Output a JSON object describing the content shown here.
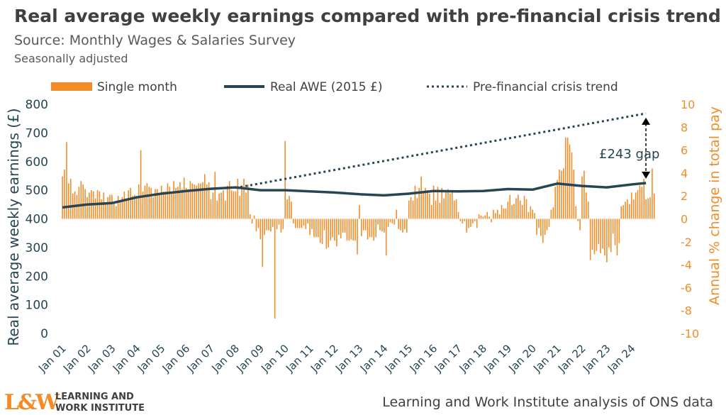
{
  "header": {
    "title": "Real average weekly earnings compared with pre-financial crisis trend",
    "subtitle": "Source: Monthly Wages & Salaries Survey",
    "note": "Seasonally adjusted"
  },
  "footer": {
    "logo_mark": "L&W",
    "logo_line1": "LEARNING AND",
    "logo_line2": "WORK INSTITUTE",
    "source_note": "Learning and Work Institute analysis of ONS data"
  },
  "colors": {
    "bar": "#F28C28",
    "line": "#264653",
    "left_axis": "#264653",
    "right_axis": "#F28C28",
    "annotation": "#264653"
  },
  "chart_data": {
    "type": "bar+line",
    "x_categories": [
      "Jan 01",
      "Jan 02",
      "Jan 03",
      "Jan 04",
      "Jan 05",
      "Jan 06",
      "Jan 07",
      "Jan 08",
      "Jan 09",
      "Jan 10",
      "Jan 11",
      "Jan 12",
      "Jan 13",
      "Jan 14",
      "Jan 15",
      "Jan 16",
      "Jan 17",
      "Jan 18",
      "Jan 19",
      "Jan 20",
      "Jan 21",
      "Jan 22",
      "Jan 23",
      "Jan 24"
    ],
    "y_left": {
      "label": "Real average weekly earnings (£)",
      "min": 0,
      "max": 800,
      "ticks": [
        0,
        100,
        200,
        300,
        400,
        500,
        600,
        700,
        800
      ]
    },
    "y_right": {
      "label": "Annual % change in total pay",
      "min": -10,
      "max": 10,
      "ticks": [
        -10,
        -8,
        -6,
        -4,
        -2,
        0,
        2,
        4,
        6,
        8,
        10
      ]
    },
    "legend": {
      "position": "top",
      "items": [
        {
          "label": "Single month",
          "kind": "bar"
        },
        {
          "label": "Real AWE (2015 £)",
          "kind": "line"
        },
        {
          "label": "Pre-financial crisis trend",
          "kind": "dotted"
        }
      ]
    },
    "series": [
      {
        "name": "Real AWE (2015 £)",
        "axis": "left",
        "type": "line",
        "points": [
          [
            "Jan 01",
            440
          ],
          [
            "Jan 02",
            450
          ],
          [
            "Jan 03",
            455
          ],
          [
            "Jan 04",
            475
          ],
          [
            "Jan 05",
            488
          ],
          [
            "Jan 06",
            497
          ],
          [
            "Jan 07",
            505
          ],
          [
            "Jan 08",
            510
          ],
          [
            "Jan 09",
            500
          ],
          [
            "Jan 10",
            500
          ],
          [
            "Jan 11",
            496
          ],
          [
            "Jan 12",
            492
          ],
          [
            "Jan 13",
            486
          ],
          [
            "Jan 14",
            482
          ],
          [
            "Jan 15",
            488
          ],
          [
            "Jan 16",
            497
          ],
          [
            "Jan 17",
            496
          ],
          [
            "Jan 18",
            497
          ],
          [
            "Jan 19",
            504
          ],
          [
            "Jan 20",
            502
          ],
          [
            "Jan 21",
            523
          ],
          [
            "Jan 22",
            515
          ],
          [
            "Jan 23",
            510
          ],
          [
            "Jan 24",
            520
          ],
          [
            "Aug 24",
            525
          ]
        ]
      },
      {
        "name": "Pre-financial crisis trend",
        "axis": "left",
        "type": "dotted-line",
        "points": [
          [
            "Jan 08",
            508
          ],
          [
            "Aug 24",
            768
          ]
        ]
      },
      {
        "name": "Single month",
        "axis": "right",
        "type": "bar",
        "values_by_year": [
          [
            3.7,
            4.3,
            6.7,
            3.1,
            3.5,
            2.2,
            2.4,
            2.1,
            2.8,
            3.3,
            3.0,
            2.6
          ],
          [
            1.9,
            2.3,
            2.5,
            2.4,
            1.8,
            2.5,
            2.4,
            1.7,
            2.3,
            1.3,
            1.9,
            2.1
          ],
          [
            2.1,
            1.4,
            1.1,
            2.0,
            1.5,
            1.9,
            2.4,
            1.8,
            2.5,
            2.7,
            2.0,
            2.1
          ],
          [
            2.0,
            3.0,
            6.0,
            2.4,
            2.9,
            3.1,
            2.8,
            2.7,
            1.9,
            2.6,
            2.6,
            2.1
          ],
          [
            2.9,
            2.4,
            2.4,
            3.1,
            2.8,
            2.3,
            3.3,
            2.7,
            2.8,
            3.2,
            2.6,
            3.6
          ],
          [
            2.7,
            2.6,
            3.3,
            3.1,
            3.0,
            2.9,
            3.1,
            3.1,
            3.2,
            3.9,
            3.0,
            3.2
          ],
          [
            1.7,
            2.3,
            4.1,
            1.6,
            2.2,
            2.3,
            2.5,
            1.6,
            2.9,
            3.3,
            2.5,
            2.4
          ],
          [
            2.4,
            3.5,
            2.0,
            2.8,
            3.5,
            2.3,
            3.0,
            0.4,
            -0.4,
            0.3,
            -1.1,
            -0.8
          ],
          [
            -1.8,
            -4.2,
            -1.4,
            -1.0,
            -1.0,
            -1.1,
            -0.7,
            -8.7,
            -0.9,
            -0.5,
            -1.2,
            -0.9
          ],
          [
            6.8,
            1.7,
            2.0,
            1.5,
            -0.4,
            -0.8,
            -0.8,
            -0.8,
            -0.8,
            -0.6,
            -0.9,
            -0.4
          ],
          [
            -1.4,
            -0.9,
            -1.6,
            -1.6,
            -1.6,
            -2.1,
            -2.2,
            -1.0,
            -2.6,
            -2.5,
            -1.9,
            -1.6
          ],
          [
            -1.9,
            -2.4,
            -1.4,
            -1.7,
            -1.2,
            -1.2,
            -1.9,
            -1.9,
            -1.8,
            -1.9,
            -1.9,
            -3.1
          ],
          [
            1.2,
            -1.5,
            -1.0,
            -1.0,
            -1.8,
            -1.6,
            -1.6,
            -1.9,
            -1.6,
            -0.5,
            -1.0,
            -1.1
          ],
          [
            -1.2,
            -3.2,
            -0.7,
            -0.3,
            -0.4,
            -0.5,
            0.8,
            -0.9,
            -1.0,
            -1.2,
            -0.9,
            -1.2
          ],
          [
            1.6,
            1.9,
            1.6,
            2.9,
            1.8,
            2.7,
            3.7,
            2.4,
            2.7,
            2.5,
            2.2,
            1.2
          ],
          [
            2.9,
            1.6,
            2.8,
            1.4,
            2.7,
            1.8,
            2.4,
            2.6,
            2.2,
            2.4,
            1.6,
            1.7
          ],
          [
            0.6,
            -0.2,
            -0.4,
            -0.2,
            -1.2,
            -0.8,
            -0.7,
            -0.4,
            -0.2,
            -0.8,
            0.4,
            0.3
          ],
          [
            0.2,
            0.3,
            0.6,
            0.2,
            -0.3,
            0.8,
            0.5,
            0.8,
            0.4,
            1.2,
            0.9,
            0.9
          ],
          [
            1.5,
            2.1,
            1.2,
            1.3,
            1.8,
            2.1,
            1.6,
            1.2,
            2.0,
            1.7,
            0.6,
            1.1
          ],
          [
            0.8,
            0.5,
            -1.4,
            -0.8,
            -1.5,
            -2.1,
            -1.4,
            -1.0,
            -0.7,
            0.8,
            1.0,
            2.8
          ],
          [
            3.4,
            4.3,
            4.2,
            4.4,
            7.1,
            7.1,
            6.5,
            5.8,
            4.3,
            1.1,
            -0.2,
            -1.0
          ],
          [
            3.7,
            4.2,
            2.3,
            1.5,
            -3.6,
            -2.7,
            -3.1,
            -2.8,
            -2.2,
            -3.0,
            -2.6,
            -3.2
          ],
          [
            -3.8,
            -2.5,
            -2.9,
            -1.3,
            -2.3,
            -3.2,
            -2.1,
            1.1,
            1.2,
            1.5,
            1.7,
            1.3
          ],
          [
            2.3,
            1.7,
            2.3,
            2.5,
            2.9,
            2.8,
            3.5,
            1.7,
            1.8,
            1.9,
            4.4,
            2.2
          ]
        ]
      }
    ],
    "annotations": [
      {
        "text": "£243 gap"
      }
    ],
    "grid": false
  }
}
